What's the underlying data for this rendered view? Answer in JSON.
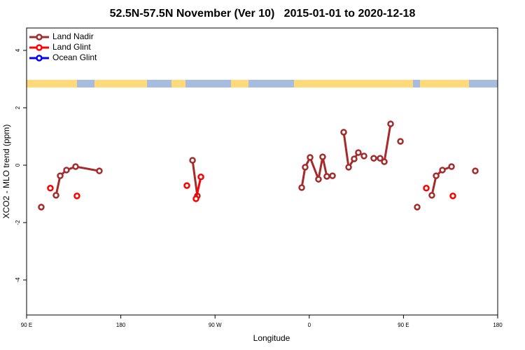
{
  "chart_data": {
    "type": "line",
    "title": "52.5N-57.5N November (Ver 10)   2015-01-01 to 2020-12-18",
    "x_label": "Longitude",
    "y_label": "XCO2 - MLO trend (ppm)",
    "xlim": [
      90,
      540
    ],
    "ylim": [
      -5.22,
      4.78
    ],
    "xticks": [
      {
        "value": 90,
        "label": "90 E"
      },
      180,
      {
        "value": 270,
        "label": "90 W"
      },
      {
        "value": 360,
        "label": "0"
      },
      {
        "value": 450,
        "label": "90 E"
      },
      {
        "value": 540,
        "label": "180"
      }
    ],
    "yticks": [
      -4,
      -2,
      0,
      2,
      4
    ],
    "legend": "top-left",
    "series": [
      {
        "name": "Land Nadir",
        "color": "#a52a2a",
        "x": [
          104.0,
          null,
          118.1,
          122.1,
          128.1,
          136.8,
          159.5,
          null,
          248.5,
          253.1,
          null,
          352.8,
          356.1,
          360.8,
          368.8,
          372.8,
          376.8,
          382.2,
          null,
          392.9,
          397.6,
          402.9,
          406.9,
          412.3,
          null,
          421.6,
          427.7,
          431.7,
          437.7,
          null,
          447.1,
          null,
          463.1,
          null,
          477.1,
          481.2,
          487.2,
          495.9,
          null,
          518.6
        ],
        "values": [
          -1.46,
          null,
          -1.05,
          -0.37,
          -0.17,
          -0.05,
          -0.2,
          null,
          0.17,
          -1.07,
          null,
          -0.78,
          -0.07,
          0.27,
          -0.49,
          0.29,
          -0.39,
          -0.37,
          null,
          1.15,
          -0.07,
          0.22,
          0.44,
          0.32,
          null,
          0.24,
          0.24,
          0.12,
          1.44,
          null,
          0.83,
          null,
          -1.46,
          null,
          -1.05,
          -0.37,
          -0.17,
          -0.05,
          null,
          -0.2
        ]
      },
      {
        "name": "Land Glint",
        "color": "#ff0000",
        "x": [
          112.7,
          null,
          138.1,
          null,
          243.1,
          null,
          251.8,
          256.5,
          null,
          471.8,
          null,
          497.2
        ],
        "values": [
          -0.8,
          null,
          -1.07,
          null,
          -0.71,
          null,
          -1.17,
          -0.41,
          null,
          -0.8,
          null,
          -1.07
        ]
      },
      {
        "name": "Ocean Glint",
        "color": "#0000ff",
        "x": [],
        "values": []
      }
    ]
  }
}
